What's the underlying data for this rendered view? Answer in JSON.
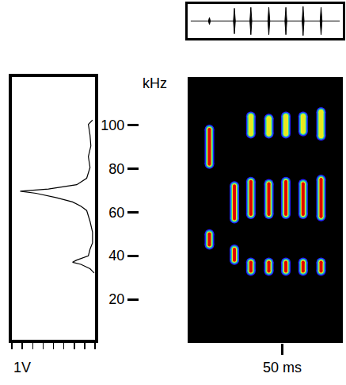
{
  "chart_data": [
    {
      "type": "waveform",
      "x": [
        11.5,
        24.7,
        33.4,
        42.9,
        51.9,
        61.0,
        70.5
      ],
      "values": [
        0.2,
        0.75,
        0.8,
        0.8,
        0.8,
        0.85,
        0.8
      ],
      "xlim": [
        0,
        82
      ],
      "ylim": [
        -1,
        1
      ],
      "tick_labels": false
    },
    {
      "type": "spectrum",
      "x_label": "1V",
      "y": [
        31,
        33,
        35,
        36,
        37,
        39,
        42,
        45,
        50,
        55,
        60,
        62,
        64,
        66,
        68,
        69,
        70,
        72,
        75,
        80,
        85,
        90,
        95,
        100,
        102
      ],
      "values": [
        0.01,
        0.06,
        0.17,
        0.27,
        0.22,
        0.08,
        0.06,
        0.03,
        0.03,
        0.06,
        0.1,
        0.17,
        0.27,
        0.47,
        0.71,
        0.9,
        0.56,
        0.22,
        0.1,
        0.06,
        0.08,
        0.05,
        0.06,
        0.08,
        0.03
      ],
      "xlim": [
        1,
        0
      ],
      "ylim": [
        0,
        122
      ],
      "xticks": [
        0,
        0.125,
        0.25,
        0.375,
        0.5,
        0.625,
        0.75,
        0.875,
        1
      ],
      "tick_labels": false
    },
    {
      "type": "spectrogram",
      "y_label": "kHz",
      "x": [
        11.5,
        24.7,
        33.4,
        42.9,
        51.9,
        61.0,
        70.5
      ],
      "series": [
        {
          "color": "#e00000",
          "low": [
            45,
            38,
            33,
            33,
            33,
            33,
            33
          ],
          "high": [
            50,
            43,
            37,
            37,
            37,
            37,
            37
          ]
        },
        {
          "color": "#e00000",
          "low": [
            82,
            57,
            59,
            59,
            59,
            59,
            58
          ],
          "high": [
            98,
            72,
            74,
            73,
            74,
            73,
            75
          ]
        },
        {
          "color": "#e8e820",
          "low": [
            null,
            null,
            96,
            96,
            96,
            97,
            95
          ],
          "high": [
            null,
            null,
            104,
            103,
            104,
            104,
            106
          ]
        }
      ],
      "xlim": [
        0,
        82
      ],
      "ylim": [
        0,
        122
      ],
      "xticks": [
        {
          "value": 50,
          "label": "50 ms"
        }
      ],
      "yticks": [
        20,
        40,
        60,
        80,
        100
      ]
    }
  ]
}
